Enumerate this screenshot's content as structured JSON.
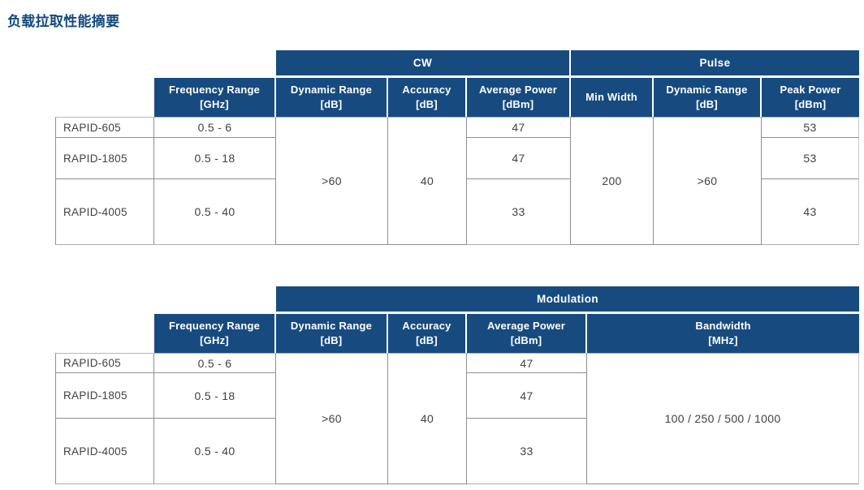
{
  "title": "负载拉取性能摘要",
  "colors": {
    "header_blue": "#174B7F",
    "title_blue": "#134A80",
    "border_gray": "#8f8f8f",
    "text_dark": "#414141"
  },
  "table_cw_pulse": {
    "groups": {
      "cw": "CW",
      "pulse": "Pulse"
    },
    "headers": {
      "frequency_range": "Frequency Range\n[GHz]",
      "cw_dynamic_range": "Dynamic Range\n[dB]",
      "cw_accuracy": "Accuracy\n[dB]",
      "cw_average_power": "Average Power\n[dBm]",
      "min_width": "Min Width",
      "pulse_dynamic_range": "Dynamic Range\n[dB]",
      "peak_power": "Peak Power\n[dBm]"
    },
    "merged_values": {
      "cw_dynamic_range": ">60",
      "cw_accuracy": "40",
      "min_width": "200",
      "pulse_dynamic_range": ">60"
    },
    "rows": [
      {
        "model": "RAPID-605",
        "frequency_range": "0.5 - 6",
        "cw_average_power": "47",
        "peak_power": "53"
      },
      {
        "model": "RAPID-1805",
        "frequency_range": "0.5 - 18",
        "cw_average_power": "47",
        "peak_power": "53"
      },
      {
        "model": "RAPID-4005",
        "frequency_range": "0.5 - 40",
        "cw_average_power": "33",
        "peak_power": "43"
      }
    ]
  },
  "table_modulation": {
    "groups": {
      "modulation": "Modulation"
    },
    "headers": {
      "frequency_range": "Frequency Range\n[GHz]",
      "dynamic_range": "Dynamic Range\n[dB]",
      "accuracy": "Accuracy\n[dB]",
      "average_power": "Average Power\n[dBm]",
      "bandwidth": "Bandwidth\n[MHz]"
    },
    "merged_values": {
      "dynamic_range": ">60",
      "accuracy": "40",
      "bandwidth": "100 / 250 / 500 / 1000"
    },
    "rows": [
      {
        "model": "RAPID-605",
        "frequency_range": "0.5 - 6",
        "average_power": "47"
      },
      {
        "model": "RAPID-1805",
        "frequency_range": "0.5 - 18",
        "average_power": "47"
      },
      {
        "model": "RAPID-4005",
        "frequency_range": "0.5 - 40",
        "average_power": "33"
      }
    ]
  }
}
